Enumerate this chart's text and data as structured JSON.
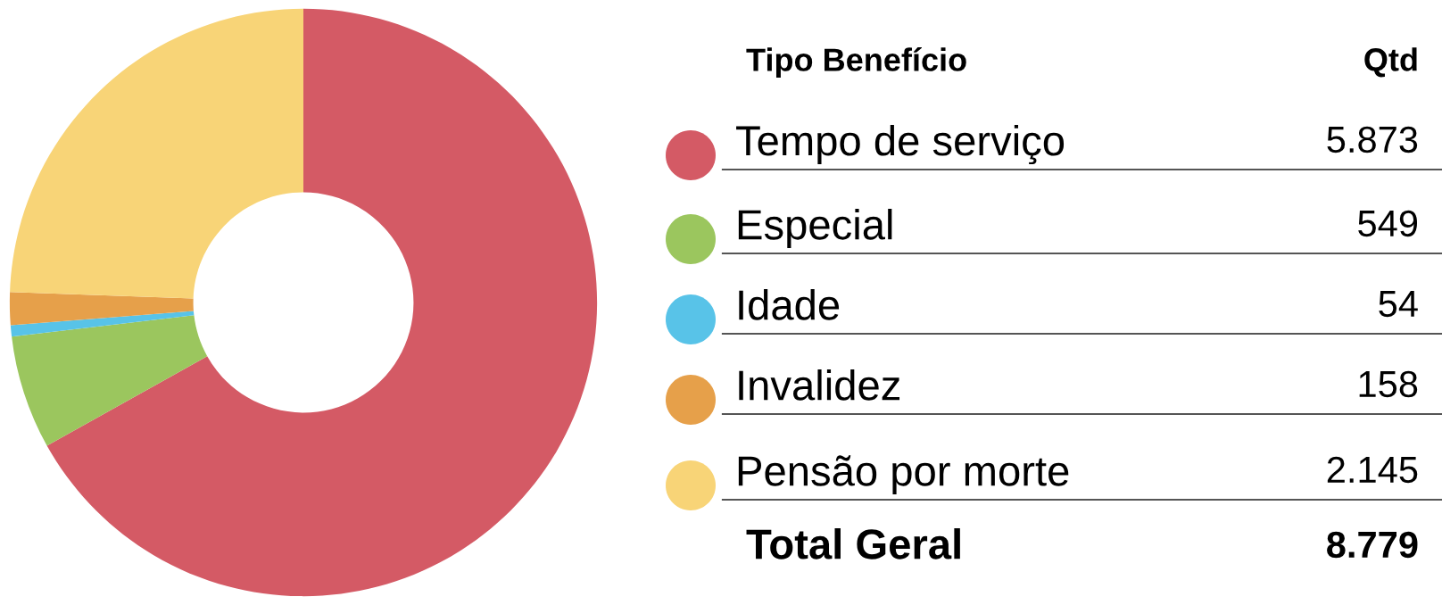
{
  "chart_data": {
    "type": "donut",
    "categories": [
      "Tempo de serviço",
      "Especial",
      "Idade",
      "Invalidez",
      "Pensão por morte"
    ],
    "values": [
      5873,
      549,
      54,
      158,
      2145
    ],
    "value_labels": [
      "5.873",
      "549",
      "54",
      "158",
      "2.145"
    ],
    "colors": [
      "#d45a65",
      "#9bc65e",
      "#58c3e8",
      "#e6a04a",
      "#f8d477"
    ],
    "legend": "right",
    "annotations": [
      "Tipo Benefício",
      "Qtd",
      "Total Geral",
      "8.779"
    ]
  }
}
